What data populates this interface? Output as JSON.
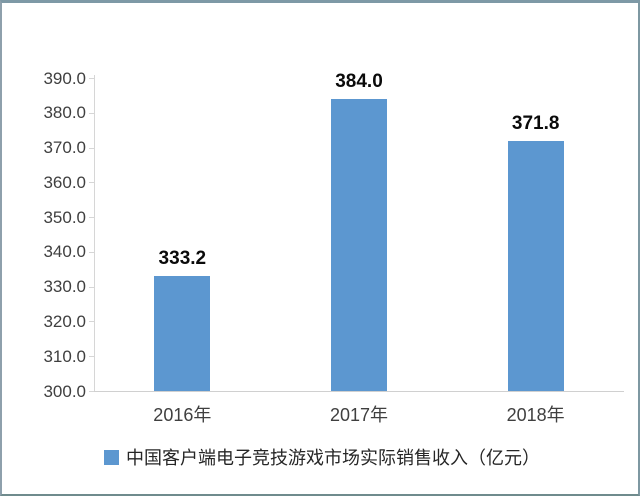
{
  "chart_data": {
    "type": "bar",
    "categories": [
      "2016年",
      "2017年",
      "2018年"
    ],
    "values": [
      333.2,
      384.0,
      371.8
    ],
    "value_labels": [
      "333.2",
      "384.0",
      "371.8"
    ],
    "series_name": "中国客户端电子竞技游戏市场实际销售收入（亿元）",
    "title": "",
    "xlabel": "",
    "ylabel": "",
    "ylim": [
      300.0,
      390.0
    ],
    "ytick_step": 10,
    "ytick_labels": [
      "300.0",
      "310.0",
      "320.0",
      "330.0",
      "340.0",
      "350.0",
      "360.0",
      "370.0",
      "380.0",
      "390.0"
    ],
    "grid": false,
    "legend_position": "bottom",
    "bar_color": "#5C97D0",
    "data_label_color": "#0A0A0A",
    "axis_text_color": "#3F3F3F"
  },
  "legend": {
    "label": "中国客户端电子竞技游戏市场实际销售收入（亿元）"
  }
}
